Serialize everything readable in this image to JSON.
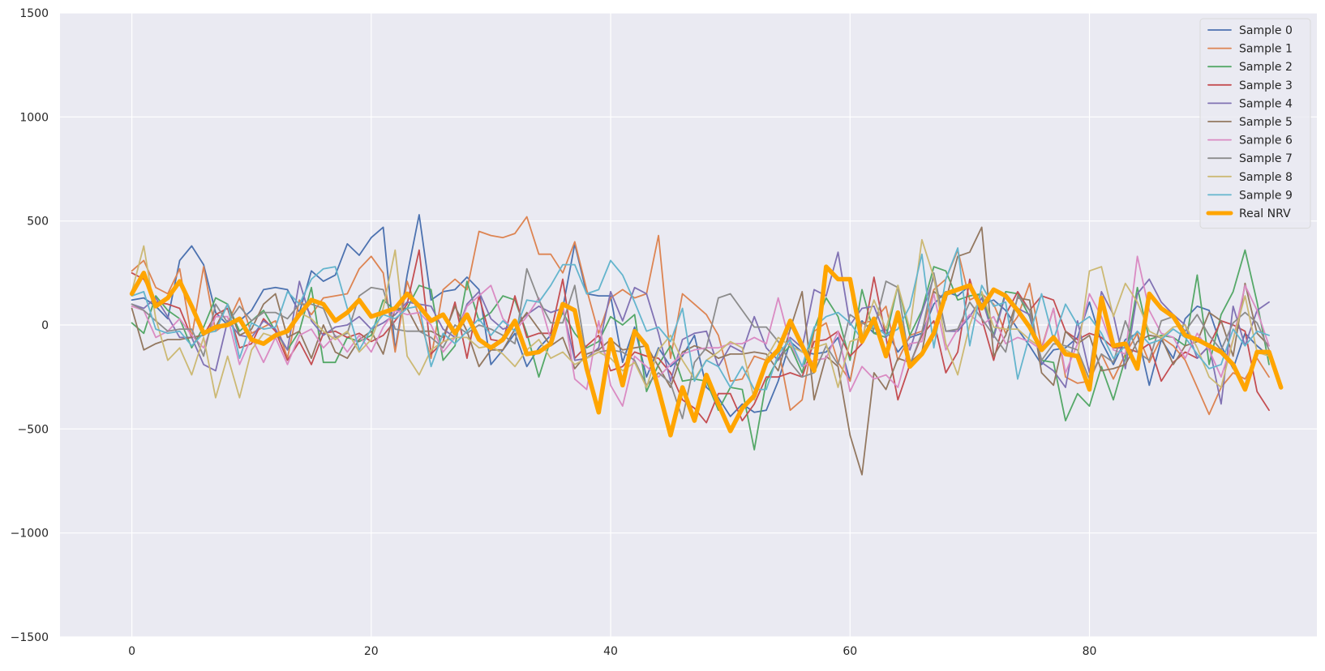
{
  "chart_data": {
    "type": "line",
    "title": "",
    "xlabel": "",
    "ylabel": "",
    "xlim": [
      -6,
      99
    ],
    "ylim": [
      -1500,
      1500
    ],
    "x_ticks": [
      0,
      20,
      40,
      60,
      80
    ],
    "y_ticks": [
      -1500,
      -1000,
      -500,
      0,
      500,
      1000,
      1500
    ],
    "x_tick_labels": [
      "0",
      "20",
      "40",
      "60",
      "80"
    ],
    "y_tick_labels": [
      "−1500",
      "−1000",
      "−500",
      "0",
      "500",
      "1000",
      "1500"
    ],
    "grid": true,
    "legend_position": "top-right",
    "background": "#EAEAF2",
    "series": [
      {
        "name": "Sample 0",
        "color": "#4C72B0",
        "width": 1.8,
        "values": [
          120,
          130,
          90,
          30,
          310,
          380,
          290,
          60,
          0,
          20,
          70,
          170,
          180,
          170,
          60,
          260,
          210,
          240,
          390,
          335,
          420,
          470,
          -120,
          240,
          530,
          120,
          160,
          170,
          230,
          170,
          -190,
          -120,
          -40,
          -200,
          -110,
          -50,
          80,
          390,
          150,
          140,
          140,
          -180,
          -10,
          -250,
          -110,
          -200,
          -150,
          -50,
          -300,
          -350,
          -440,
          -380,
          -420,
          -410,
          -270,
          -80,
          -130,
          -140,
          -130,
          -60,
          -270,
          20,
          -40,
          -20,
          -130,
          -60,
          -40,
          100,
          160,
          140,
          190,
          100,
          120,
          70,
          -20,
          -100,
          -190,
          -120,
          -110,
          -60,
          110,
          -80,
          -190,
          -70,
          -40,
          -290,
          -70,
          -160,
          30,
          90,
          70,
          -100,
          -210,
          -40,
          -100,
          -150
        ]
      },
      {
        "name": "Sample 1",
        "color": "#DD8452",
        "width": 1.8,
        "values": [
          260,
          310,
          180,
          150,
          270,
          -60,
          280,
          -30,
          10,
          130,
          -40,
          -10,
          20,
          -160,
          120,
          50,
          130,
          140,
          150,
          270,
          330,
          250,
          -130,
          210,
          40,
          -160,
          170,
          220,
          170,
          450,
          430,
          420,
          440,
          520,
          340,
          340,
          250,
          400,
          170,
          -40,
          130,
          170,
          130,
          150,
          430,
          -160,
          150,
          100,
          50,
          -50,
          -270,
          -260,
          -150,
          -170,
          -110,
          -410,
          -360,
          -30,
          10,
          -180,
          -270,
          10,
          20,
          90,
          -170,
          -50,
          -30,
          170,
          220,
          360,
          120,
          150,
          100,
          -40,
          40,
          200,
          -110,
          80,
          -250,
          -280,
          -270,
          -140,
          -260,
          -140,
          -40,
          -180,
          -60,
          -100,
          -170,
          -300,
          -430,
          -300,
          -230,
          -260,
          -160,
          -250
        ]
      },
      {
        "name": "Sample 2",
        "color": "#55A868",
        "width": 1.8,
        "values": [
          10,
          -40,
          140,
          70,
          30,
          -110,
          -10,
          130,
          100,
          -30,
          20,
          70,
          -30,
          -120,
          -30,
          180,
          -180,
          -180,
          -60,
          -80,
          -50,
          120,
          70,
          80,
          190,
          170,
          -170,
          -100,
          210,
          20,
          60,
          140,
          120,
          -40,
          -250,
          -70,
          60,
          -40,
          -110,
          -80,
          40,
          0,
          50,
          -320,
          -190,
          -100,
          -270,
          -260,
          -270,
          -410,
          -300,
          -310,
          -600,
          -270,
          -160,
          -100,
          -230,
          -20,
          130,
          40,
          -170,
          170,
          -40,
          -60,
          190,
          -50,
          70,
          280,
          260,
          120,
          140,
          150,
          -50,
          160,
          150,
          40,
          -170,
          -180,
          -460,
          -330,
          -390,
          -200,
          -360,
          -160,
          180,
          -70,
          -50,
          -60,
          -100,
          240,
          -190,
          50,
          160,
          360,
          110,
          -190
        ]
      },
      {
        "name": "Sample 3",
        "color": "#C44E52",
        "width": 1.8,
        "values": [
          250,
          220,
          110,
          100,
          80,
          -60,
          -50,
          50,
          80,
          -110,
          -90,
          30,
          -30,
          -170,
          -80,
          -190,
          -40,
          -30,
          -60,
          -40,
          -80,
          -50,
          20,
          100,
          360,
          -140,
          -80,
          110,
          -160,
          140,
          -70,
          -80,
          140,
          -60,
          -40,
          -40,
          220,
          -160,
          -100,
          -50,
          -220,
          -200,
          -130,
          -150,
          -160,
          -230,
          -360,
          -400,
          -470,
          -330,
          -330,
          -460,
          -380,
          -250,
          -250,
          -230,
          -250,
          -80,
          -70,
          -30,
          -150,
          -90,
          230,
          -60,
          -360,
          -190,
          -50,
          20,
          -230,
          -130,
          220,
          30,
          -170,
          50,
          160,
          70,
          140,
          120,
          -30,
          -70,
          -40,
          -60,
          -110,
          -110,
          -130,
          -90,
          -270,
          -180,
          -130,
          -160,
          -100,
          20,
          0,
          -30,
          -320,
          -410
        ]
      },
      {
        "name": "Sample 4",
        "color": "#8172B3",
        "width": 1.8,
        "values": [
          100,
          80,
          130,
          40,
          -60,
          -60,
          -190,
          -220,
          20,
          -50,
          -60,
          20,
          -20,
          -120,
          210,
          20,
          -50,
          -10,
          0,
          40,
          -20,
          10,
          50,
          110,
          100,
          90,
          -20,
          -60,
          100,
          160,
          30,
          -20,
          0,
          50,
          90,
          60,
          80,
          -170,
          -160,
          -110,
          160,
          20,
          180,
          150,
          -40,
          -270,
          -70,
          -40,
          -30,
          -200,
          -100,
          -130,
          40,
          -110,
          -170,
          -60,
          -110,
          170,
          140,
          350,
          0,
          80,
          90,
          -60,
          20,
          -120,
          60,
          230,
          -30,
          -30,
          40,
          130,
          -60,
          150,
          80,
          50,
          -180,
          -220,
          -300,
          20,
          -230,
          160,
          50,
          -210,
          150,
          220,
          110,
          50,
          0,
          -160,
          -100,
          -380,
          90,
          -100,
          70,
          110
        ]
      },
      {
        "name": "Sample 5",
        "color": "#937860",
        "width": 1.8,
        "values": [
          80,
          -120,
          -90,
          -70,
          -70,
          -60,
          -50,
          -10,
          100,
          -50,
          -20,
          100,
          150,
          -60,
          -30,
          -160,
          0,
          -130,
          -160,
          -70,
          -30,
          -140,
          80,
          80,
          -30,
          -30,
          -60,
          90,
          -30,
          -200,
          -120,
          -120,
          -20,
          60,
          -20,
          -100,
          -60,
          -210,
          -140,
          -120,
          -70,
          -120,
          -110,
          -100,
          -200,
          -300,
          -130,
          -100,
          -120,
          -160,
          -140,
          -140,
          -130,
          -140,
          -220,
          -20,
          160,
          -360,
          -150,
          -200,
          -530,
          -720,
          -230,
          -310,
          -160,
          -180,
          -130,
          160,
          120,
          330,
          350,
          470,
          -150,
          -50,
          130,
          120,
          -230,
          -290,
          -30,
          -90,
          -50,
          -220,
          -210,
          -190,
          -80,
          -50,
          -60,
          -190,
          -100,
          -80,
          60,
          20,
          -150,
          200,
          -40,
          -100
        ]
      },
      {
        "name": "Sample 6",
        "color": "#DA8BC3",
        "width": 1.8,
        "values": [
          90,
          70,
          -60,
          -30,
          30,
          -50,
          -110,
          40,
          40,
          -190,
          -60,
          -180,
          -60,
          -190,
          -50,
          -20,
          -110,
          -50,
          -130,
          -50,
          -130,
          -10,
          70,
          50,
          60,
          0,
          -130,
          -60,
          90,
          140,
          190,
          30,
          -30,
          40,
          130,
          -70,
          100,
          -260,
          -310,
          20,
          -290,
          -390,
          -150,
          -200,
          -250,
          -190,
          -140,
          -120,
          -110,
          -110,
          -90,
          -90,
          -60,
          -90,
          130,
          -90,
          -200,
          -170,
          -160,
          -30,
          -320,
          -200,
          -260,
          -240,
          -300,
          -90,
          -80,
          150,
          -120,
          -20,
          50,
          0,
          40,
          -90,
          -60,
          -80,
          -120,
          80,
          -230,
          -90,
          150,
          40,
          -120,
          -140,
          330,
          70,
          -40,
          -60,
          -160,
          -40,
          -120,
          -250,
          -70,
          190,
          70,
          -100
        ]
      },
      {
        "name": "Sample 7",
        "color": "#8C8C8C",
        "width": 1.8,
        "values": [
          100,
          70,
          20,
          -30,
          -20,
          -20,
          -150,
          100,
          10,
          90,
          20,
          60,
          60,
          30,
          100,
          100,
          80,
          -60,
          -40,
          140,
          180,
          170,
          -20,
          -30,
          -30,
          -60,
          -110,
          0,
          -40,
          0,
          -20,
          -50,
          -90,
          270,
          120,
          10,
          10,
          190,
          -160,
          -130,
          -120,
          -130,
          -170,
          -290,
          -230,
          -280,
          -450,
          -180,
          -110,
          130,
          150,
          70,
          -10,
          -10,
          -80,
          -180,
          -250,
          -230,
          -100,
          -190,
          50,
          10,
          -20,
          210,
          180,
          -190,
          -40,
          250,
          -30,
          -20,
          110,
          30,
          -50,
          -130,
          140,
          70,
          -170,
          -90,
          -100,
          -120,
          -260,
          -140,
          -180,
          20,
          -130,
          -170,
          20,
          40,
          -30,
          50,
          -50,
          -120,
          10,
          60,
          10,
          -120
        ]
      },
      {
        "name": "Sample 8",
        "color": "#CCB974",
        "width": 1.8,
        "values": [
          160,
          380,
          30,
          -170,
          -110,
          -240,
          -60,
          -350,
          -150,
          -350,
          -120,
          -40,
          -60,
          -30,
          60,
          30,
          -30,
          -70,
          -30,
          -130,
          -70,
          80,
          360,
          -150,
          -240,
          -120,
          -80,
          -60,
          -60,
          -110,
          -100,
          -140,
          -200,
          -120,
          -70,
          -160,
          -130,
          -190,
          -160,
          -130,
          -160,
          -220,
          -180,
          -300,
          -120,
          -50,
          -170,
          -260,
          -170,
          -130,
          -80,
          -110,
          -360,
          -160,
          -60,
          -100,
          -130,
          -110,
          -90,
          -300,
          -80,
          -60,
          120,
          -20,
          190,
          -20,
          410,
          230,
          -90,
          -240,
          0,
          160,
          -10,
          -20,
          -20,
          -70,
          -110,
          -50,
          -120,
          -150,
          260,
          280,
          40,
          200,
          110,
          -30,
          -60,
          -10,
          0,
          -110,
          -250,
          -300,
          -70,
          140,
          -130,
          -150
        ]
      },
      {
        "name": "Sample 9",
        "color": "#64B5CD",
        "width": 1.8,
        "values": [
          140,
          160,
          -20,
          -40,
          -30,
          -100,
          -40,
          -30,
          100,
          -160,
          10,
          -20,
          -10,
          160,
          100,
          220,
          270,
          280,
          80,
          -120,
          -20,
          50,
          30,
          80,
          90,
          -200,
          -40,
          -90,
          -30,
          30,
          -50,
          20,
          -30,
          120,
          110,
          190,
          290,
          290,
          150,
          170,
          310,
          240,
          110,
          -30,
          -10,
          -80,
          80,
          -270,
          -170,
          -200,
          -300,
          -200,
          -310,
          -310,
          -140,
          -70,
          -200,
          -10,
          40,
          60,
          10,
          -70,
          0,
          -50,
          -20,
          90,
          340,
          -110,
          220,
          370,
          -100,
          190,
          90,
          110,
          -260,
          -50,
          150,
          -70,
          100,
          0,
          40,
          -40,
          -160,
          -100,
          -30,
          -90,
          -70,
          -20,
          -60,
          -140,
          -210,
          -190,
          -20,
          -100,
          -30,
          -50
        ]
      },
      {
        "name": "Real NRV",
        "color": "#FFA500",
        "width": 5.5,
        "values": [
          150,
          250,
          90,
          130,
          210,
          90,
          -40,
          -10,
          0,
          30,
          -70,
          -90,
          -50,
          -30,
          50,
          120,
          100,
          20,
          60,
          120,
          40,
          60,
          80,
          150,
          90,
          20,
          50,
          -40,
          50,
          -70,
          -110,
          -70,
          20,
          -140,
          -130,
          -90,
          100,
          70,
          -210,
          -420,
          -70,
          -290,
          -30,
          -100,
          -310,
          -530,
          -300,
          -460,
          -240,
          -380,
          -510,
          -400,
          -340,
          -180,
          -120,
          20,
          -100,
          -220,
          280,
          220,
          220,
          -80,
          30,
          -150,
          60,
          -200,
          -140,
          -40,
          150,
          170,
          190,
          80,
          170,
          140,
          70,
          -10,
          -120,
          -60,
          -140,
          -150,
          -310,
          130,
          -100,
          -90,
          -210,
          150,
          80,
          40,
          -50,
          -70,
          -100,
          -130,
          -190,
          -310,
          -130,
          -130,
          -300
        ]
      }
    ]
  }
}
